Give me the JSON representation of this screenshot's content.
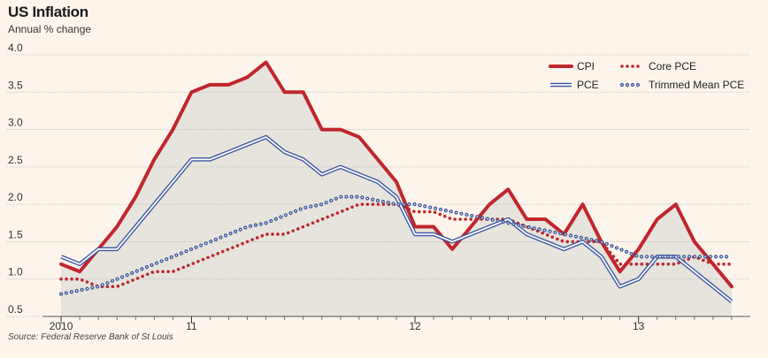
{
  "title": "US Inflation",
  "subtitle": "Annual % change",
  "source": "Source: Federal Reserve Bank of St Louis",
  "colors": {
    "cpi": "#c0262c",
    "pce": "#3b55a0",
    "area_fill": "#e6e4dc",
    "background": "#fdf5ec",
    "grid": "#bdbdbd"
  },
  "chart_data": {
    "type": "line",
    "xlabel": "",
    "ylabel": "",
    "xlim": [
      0,
      38
    ],
    "ylim": [
      0.5,
      4.0
    ],
    "yticks": [
      "0.5",
      "1.0",
      "1.5",
      "2.0",
      "2.5",
      "3.0",
      "3.5",
      "4.0"
    ],
    "xtick_labels": [
      {
        "label": "2010",
        "x": 1
      },
      {
        "label": "11",
        "x": 8
      },
      {
        "label": "12",
        "x": 20
      },
      {
        "label": "13",
        "x": 32
      }
    ],
    "grid": true,
    "legend_position": "top-right",
    "series": [
      {
        "name": "CPI",
        "style": "solid-thick",
        "color": "#c0262c",
        "values": [
          1.2,
          1.1,
          1.4,
          1.7,
          2.1,
          2.6,
          3.0,
          3.5,
          3.6,
          3.6,
          3.7,
          3.9,
          3.5,
          3.5,
          3.0,
          3.0,
          2.9,
          2.6,
          2.3,
          1.7,
          1.7,
          1.4,
          1.7,
          2.0,
          2.2,
          1.8,
          1.8,
          1.6,
          2.0,
          1.5,
          1.1,
          1.4,
          1.8,
          2.0,
          1.5,
          1.2,
          0.9
        ]
      },
      {
        "name": "Core PCE",
        "style": "dotted",
        "color": "#c0262c",
        "values": [
          1.0,
          1.0,
          0.9,
          0.9,
          1.0,
          1.1,
          1.1,
          1.2,
          1.3,
          1.4,
          1.5,
          1.6,
          1.6,
          1.7,
          1.8,
          1.9,
          2.0,
          2.0,
          2.0,
          1.9,
          1.9,
          1.8,
          1.8,
          1.8,
          1.8,
          1.7,
          1.6,
          1.5,
          1.5,
          1.5,
          1.2,
          1.2,
          1.2,
          1.2,
          1.3,
          1.2,
          1.2
        ]
      },
      {
        "name": "PCE",
        "style": "double",
        "color": "#3b55a0",
        "values": [
          1.3,
          1.2,
          1.4,
          1.4,
          1.7,
          2.0,
          2.3,
          2.6,
          2.6,
          2.7,
          2.8,
          2.9,
          2.7,
          2.6,
          2.4,
          2.5,
          2.4,
          2.3,
          2.1,
          1.6,
          1.6,
          1.5,
          1.6,
          1.7,
          1.8,
          1.6,
          1.5,
          1.4,
          1.5,
          1.3,
          0.9,
          1.0,
          1.3,
          1.3,
          1.1,
          0.9,
          0.7
        ]
      },
      {
        "name": "Trimmed Mean PCE",
        "style": "dotted-hollow",
        "color": "#3b55a0",
        "values": [
          0.8,
          0.85,
          0.9,
          1.0,
          1.1,
          1.2,
          1.3,
          1.4,
          1.5,
          1.6,
          1.7,
          1.75,
          1.85,
          1.95,
          2.0,
          2.1,
          2.1,
          2.05,
          2.0,
          2.0,
          1.95,
          1.9,
          1.85,
          1.8,
          1.75,
          1.7,
          1.65,
          1.6,
          1.55,
          1.5,
          1.4,
          1.3,
          1.3,
          1.3,
          1.3,
          1.3,
          1.3
        ]
      }
    ]
  }
}
